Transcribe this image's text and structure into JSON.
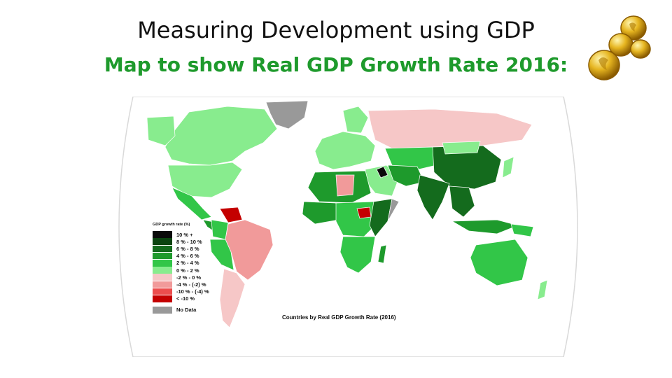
{
  "slide": {
    "title": "Measuring Development using GDP",
    "subtitle": "Map to show Real GDP Growth Rate 2016:"
  },
  "map": {
    "caption": "Countries by Real GDP Growth Rate (2016)",
    "legend": {
      "title": "GDP growth rate (%)",
      "items": [
        {
          "label": "10 % +",
          "color": "#0a0a0a"
        },
        {
          "label": "8 % - 10 %",
          "color": "#0b4410"
        },
        {
          "label": "6 % - 8 %",
          "color": "#146b1d"
        },
        {
          "label": "4 % - 6 %",
          "color": "#1e9a2c"
        },
        {
          "label": "2 % - 4 %",
          "color": "#32c648"
        },
        {
          "label": "0 % - 2 %",
          "color": "#88ec8e"
        },
        {
          "label": "-2 % - 0 %",
          "color": "#f6c7c7"
        },
        {
          "label": "-4 % - (-2) %",
          "color": "#f19a9a"
        },
        {
          "label": "-10 % - (-4) %",
          "color": "#ec4d4d"
        },
        {
          "label": "< -10 %",
          "color": "#c40000"
        }
      ],
      "no_data": {
        "label": "No Data",
        "color": "#999999"
      }
    }
  }
}
